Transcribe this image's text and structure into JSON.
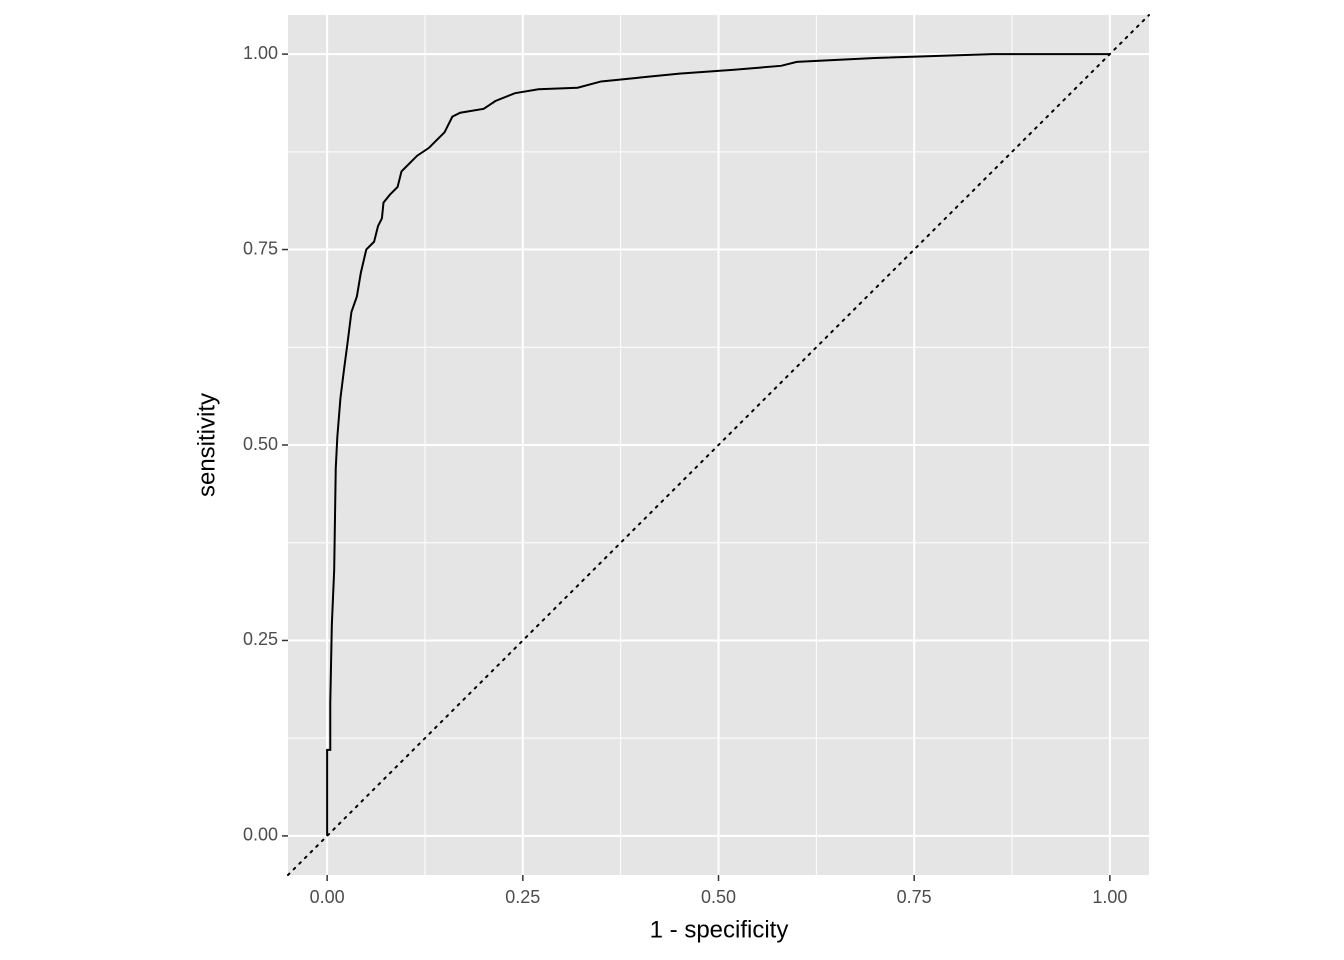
{
  "chart_data": {
    "type": "line",
    "x_label": "1 - specificity",
    "y_label": "sensitivity",
    "xlim": [
      -0.05,
      1.05
    ],
    "ylim": [
      -0.05,
      1.05
    ],
    "xticks": [
      {
        "value": 0,
        "label": "0.00"
      },
      {
        "value": 0.25,
        "label": "0.25"
      },
      {
        "value": 0.5,
        "label": "0.50"
      },
      {
        "value": 0.75,
        "label": "0.75"
      },
      {
        "value": 1,
        "label": "1.00"
      }
    ],
    "yticks": [
      {
        "value": 0,
        "label": "0.00"
      },
      {
        "value": 0.25,
        "label": "0.25"
      },
      {
        "value": 0.5,
        "label": "0.50"
      },
      {
        "value": 0.75,
        "label": "0.75"
      },
      {
        "value": 1,
        "label": "1.00"
      }
    ],
    "x_minor_grid": [
      0.125,
      0.375,
      0.625,
      0.875
    ],
    "y_minor_grid": [
      0.125,
      0.375,
      0.625,
      0.875
    ],
    "grid": true,
    "reference_line": {
      "slope": 1,
      "intercept": 0,
      "color": "#000000"
    },
    "series": [
      {
        "color": "#000000",
        "x": [
          0,
          0,
          0.004,
          0.004,
          0.006,
          0.009,
          0.011,
          0.013,
          0.017,
          0.022,
          0.026,
          0.031,
          0.038,
          0.043,
          0.05,
          0.06,
          0.065,
          0.07,
          0.072,
          0.08,
          0.09,
          0.095,
          0.105,
          0.115,
          0.13,
          0.14,
          0.15,
          0.16,
          0.17,
          0.2,
          0.215,
          0.24,
          0.27,
          0.32,
          0.35,
          0.4,
          0.45,
          0.52,
          0.58,
          0.6,
          0.7,
          0.85,
          1
        ],
        "values": [
          0,
          0.11,
          0.11,
          0.17,
          0.27,
          0.34,
          0.47,
          0.51,
          0.56,
          0.6,
          0.63,
          0.67,
          0.69,
          0.72,
          0.75,
          0.76,
          0.78,
          0.79,
          0.81,
          0.82,
          0.83,
          0.85,
          0.86,
          0.87,
          0.88,
          0.89,
          0.9,
          0.92,
          0.925,
          0.93,
          0.94,
          0.95,
          0.955,
          0.957,
          0.965,
          0.97,
          0.975,
          0.98,
          0.985,
          0.99,
          0.995,
          1,
          1
        ]
      }
    ]
  }
}
